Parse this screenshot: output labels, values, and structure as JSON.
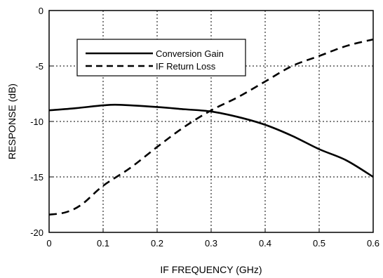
{
  "chart_data": {
    "type": "line",
    "xlabel": "IF FREQUENCY (GHz)",
    "ylabel": "RESPONSE (dB)",
    "xlim": [
      0,
      0.6
    ],
    "ylim": [
      -20,
      0
    ],
    "x_ticks": [
      "0",
      "0.1",
      "0.2",
      "0.3",
      "0.4",
      "0.5",
      "0.6"
    ],
    "y_ticks": [
      "0",
      "-5",
      "-10",
      "-15",
      "-20"
    ],
    "grid": true,
    "legend_position": "top-left",
    "series": [
      {
        "name": "Conversion Gain",
        "style": "solid",
        "x": [
          0,
          0.05,
          0.1,
          0.13,
          0.2,
          0.25,
          0.3,
          0.35,
          0.4,
          0.45,
          0.5,
          0.55,
          0.6
        ],
        "y": [
          -9.0,
          -8.8,
          -8.55,
          -8.5,
          -8.7,
          -8.9,
          -9.1,
          -9.6,
          -10.3,
          -11.3,
          -12.5,
          -13.5,
          -15.0
        ]
      },
      {
        "name": "IF Return Loss",
        "style": "dashed",
        "x": [
          0,
          0.03,
          0.06,
          0.1,
          0.15,
          0.2,
          0.25,
          0.3,
          0.35,
          0.4,
          0.45,
          0.5,
          0.55,
          0.6
        ],
        "y": [
          -18.4,
          -18.2,
          -17.5,
          -15.8,
          -14.2,
          -12.3,
          -10.5,
          -9.0,
          -7.8,
          -6.4,
          -5.0,
          -4.1,
          -3.2,
          -2.6
        ]
      }
    ]
  }
}
